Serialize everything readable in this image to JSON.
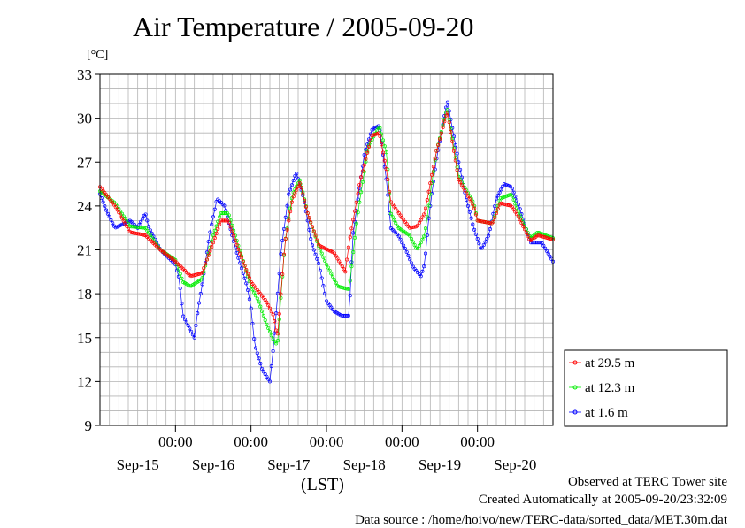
{
  "title": "Air Temperature / 2005-09-20",
  "unit_label": "[°C]",
  "footer": {
    "line1": "Observed at TERC Tower site",
    "line2": "Created Automatically at 2005-09-20/23:32:09",
    "line3": "Data source : /home/hoivo/new/TERC-data/sorted_data/MET.30m.dat"
  },
  "chart_data": {
    "type": "line",
    "title": "Air Temperature / 2005-09-20",
    "ylabel": "[°C]",
    "xlabel": "(LST)",
    "xlim_days": [
      -1.0,
      5.0
    ],
    "ylim": [
      9,
      33
    ],
    "y_ticks": [
      "9",
      "12",
      "15",
      "18",
      "21",
      "24",
      "27",
      "30",
      "33"
    ],
    "x_time_ticks": [
      "00:00",
      "00:00",
      "00:00",
      "00:00",
      "00:00"
    ],
    "x_date_labels": [
      "Sep-15",
      "Sep-16",
      "Sep-17",
      "Sep-18",
      "Sep-19",
      "Sep-20"
    ],
    "grid": true,
    "legend_position": "right",
    "series": [
      {
        "name": "at 29.5 m",
        "color": "#ff0000",
        "keypoints": [
          [
            -1.0,
            25.3
          ],
          [
            -0.8,
            24.0
          ],
          [
            -0.6,
            22.2
          ],
          [
            -0.4,
            22.0
          ],
          [
            -0.2,
            21.0
          ],
          [
            0.0,
            20.2
          ],
          [
            0.2,
            19.2
          ],
          [
            0.35,
            19.4
          ],
          [
            0.5,
            21.5
          ],
          [
            0.6,
            23.0
          ],
          [
            0.7,
            23.0
          ],
          [
            0.85,
            20.8
          ],
          [
            1.0,
            18.8
          ],
          [
            1.2,
            17.5
          ],
          [
            1.3,
            16.5
          ],
          [
            1.35,
            15.0
          ],
          [
            1.45,
            21.5
          ],
          [
            1.55,
            24.5
          ],
          [
            1.65,
            25.6
          ],
          [
            1.75,
            23.5
          ],
          [
            1.9,
            21.3
          ],
          [
            2.1,
            20.8
          ],
          [
            2.25,
            19.5
          ],
          [
            2.3,
            21.5
          ],
          [
            2.45,
            25.8
          ],
          [
            2.6,
            28.8
          ],
          [
            2.7,
            29.0
          ],
          [
            2.8,
            26.3
          ],
          [
            2.85,
            24.3
          ],
          [
            3.0,
            23.2
          ],
          [
            3.1,
            22.5
          ],
          [
            3.2,
            22.6
          ],
          [
            3.3,
            23.5
          ],
          [
            3.45,
            27.6
          ],
          [
            3.6,
            30.5
          ],
          [
            3.75,
            25.8
          ],
          [
            3.95,
            24.0
          ],
          [
            4.0,
            23.0
          ],
          [
            4.2,
            22.8
          ],
          [
            4.3,
            24.2
          ],
          [
            4.45,
            24.0
          ],
          [
            4.55,
            23.2
          ],
          [
            4.7,
            21.6
          ],
          [
            4.8,
            22.0
          ],
          [
            5.0,
            21.7
          ]
        ]
      },
      {
        "name": "at 12.3 m",
        "color": "#00ee00",
        "keypoints": [
          [
            -1.0,
            25.0
          ],
          [
            -0.8,
            24.2
          ],
          [
            -0.6,
            22.6
          ],
          [
            -0.4,
            22.5
          ],
          [
            -0.2,
            21.0
          ],
          [
            0.0,
            20.3
          ],
          [
            0.1,
            18.8
          ],
          [
            0.2,
            18.5
          ],
          [
            0.35,
            19.0
          ],
          [
            0.5,
            22.0
          ],
          [
            0.6,
            23.5
          ],
          [
            0.7,
            23.5
          ],
          [
            0.85,
            21.0
          ],
          [
            1.0,
            18.5
          ],
          [
            1.1,
            17.5
          ],
          [
            1.2,
            16.0
          ],
          [
            1.3,
            14.8
          ],
          [
            1.35,
            14.5
          ],
          [
            1.45,
            21.5
          ],
          [
            1.55,
            24.8
          ],
          [
            1.65,
            25.8
          ],
          [
            1.75,
            23.5
          ],
          [
            1.9,
            21.2
          ],
          [
            2.0,
            20.0
          ],
          [
            2.15,
            18.5
          ],
          [
            2.3,
            18.3
          ],
          [
            2.4,
            23.0
          ],
          [
            2.55,
            28.0
          ],
          [
            2.7,
            29.5
          ],
          [
            2.8,
            27.5
          ],
          [
            2.85,
            23.5
          ],
          [
            2.95,
            22.5
          ],
          [
            3.1,
            22.0
          ],
          [
            3.2,
            21.0
          ],
          [
            3.3,
            22.0
          ],
          [
            3.45,
            27.6
          ],
          [
            3.6,
            30.7
          ],
          [
            3.75,
            26.0
          ],
          [
            3.95,
            24.2
          ],
          [
            4.0,
            23.0
          ],
          [
            4.2,
            22.8
          ],
          [
            4.3,
            24.5
          ],
          [
            4.45,
            24.8
          ],
          [
            4.55,
            23.5
          ],
          [
            4.7,
            21.8
          ],
          [
            4.8,
            22.2
          ],
          [
            5.0,
            21.8
          ]
        ]
      },
      {
        "name": "at 1.6 m",
        "color": "#0000ff",
        "keypoints": [
          [
            -1.0,
            24.8
          ],
          [
            -0.9,
            23.5
          ],
          [
            -0.8,
            22.5
          ],
          [
            -0.6,
            23.0
          ],
          [
            -0.5,
            22.5
          ],
          [
            -0.4,
            23.5
          ],
          [
            -0.35,
            22.5
          ],
          [
            -0.2,
            21.0
          ],
          [
            0.0,
            20.0
          ],
          [
            0.05,
            19.0
          ],
          [
            0.1,
            16.5
          ],
          [
            0.2,
            15.5
          ],
          [
            0.25,
            15.0
          ],
          [
            0.3,
            17.0
          ],
          [
            0.35,
            18.5
          ],
          [
            0.45,
            22.0
          ],
          [
            0.55,
            24.5
          ],
          [
            0.65,
            24.0
          ],
          [
            0.8,
            21.0
          ],
          [
            0.95,
            18.5
          ],
          [
            1.0,
            17.0
          ],
          [
            1.05,
            14.5
          ],
          [
            1.15,
            12.8
          ],
          [
            1.25,
            12.0
          ],
          [
            1.3,
            14.5
          ],
          [
            1.4,
            21.0
          ],
          [
            1.5,
            24.8
          ],
          [
            1.6,
            26.3
          ],
          [
            1.7,
            24.5
          ],
          [
            1.8,
            21.5
          ],
          [
            1.9,
            20.0
          ],
          [
            2.0,
            17.5
          ],
          [
            2.1,
            16.8
          ],
          [
            2.2,
            16.5
          ],
          [
            2.3,
            16.5
          ],
          [
            2.35,
            22.0
          ],
          [
            2.5,
            27.5
          ],
          [
            2.6,
            29.2
          ],
          [
            2.7,
            29.5
          ],
          [
            2.8,
            25.5
          ],
          [
            2.85,
            22.5
          ],
          [
            2.95,
            22.0
          ],
          [
            3.05,
            21.0
          ],
          [
            3.15,
            19.8
          ],
          [
            3.25,
            19.2
          ],
          [
            3.3,
            20.0
          ],
          [
            3.35,
            23.0
          ],
          [
            3.45,
            27.0
          ],
          [
            3.6,
            31.2
          ],
          [
            3.75,
            27.0
          ],
          [
            3.85,
            24.5
          ],
          [
            3.95,
            22.5
          ],
          [
            4.05,
            21.0
          ],
          [
            4.15,
            22.0
          ],
          [
            4.25,
            24.5
          ],
          [
            4.35,
            25.5
          ],
          [
            4.45,
            25.3
          ],
          [
            4.55,
            24.0
          ],
          [
            4.7,
            21.5
          ],
          [
            4.85,
            21.5
          ],
          [
            5.0,
            20.2
          ]
        ]
      }
    ]
  }
}
